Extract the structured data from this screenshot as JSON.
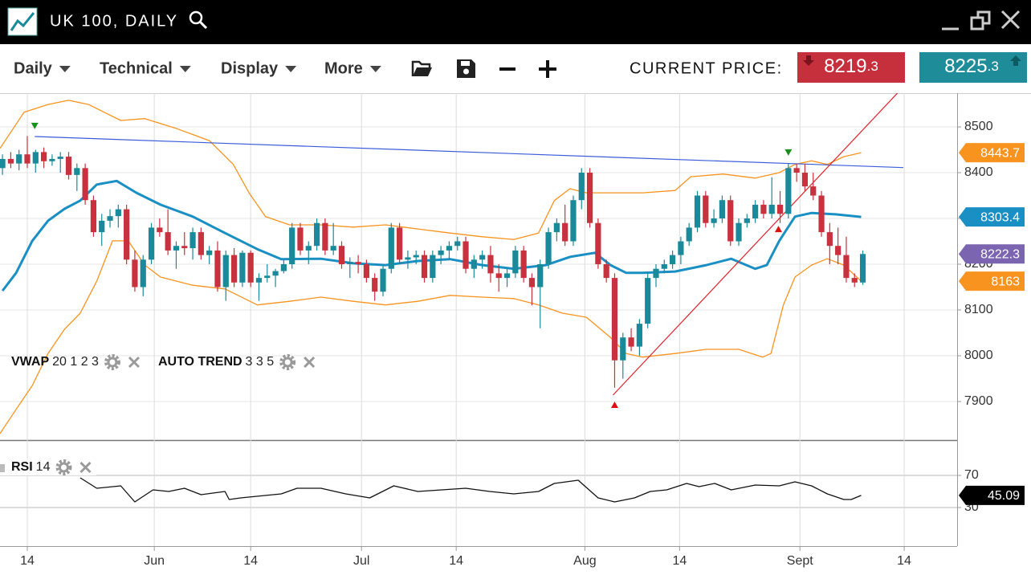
{
  "header": {
    "title": "UK 100, DAILY"
  },
  "toolbar": {
    "menus": [
      "Daily",
      "Technical",
      "Display",
      "More"
    ],
    "price_label": "CURRENT PRICE:",
    "bid": 8219.3,
    "ask": 8225.3
  },
  "chart_data": [
    {
      "type": "candlestick",
      "up_color": "#1a8a9a",
      "down_color": "#c8313e",
      "last_price_color": "#7b64b0",
      "ylim": [
        7815.8,
        8573.7
      ],
      "yticks": [
        7900,
        8000,
        8100,
        8200,
        8300,
        8400,
        8500
      ],
      "grid": true,
      "x": [
        0,
        1,
        2,
        3,
        4,
        5,
        6,
        7,
        8,
        9,
        10,
        11,
        12,
        13,
        14,
        15,
        16,
        17,
        18,
        19,
        20,
        21,
        22,
        23,
        24,
        25,
        26,
        27,
        28,
        29,
        30,
        31,
        32,
        33,
        34,
        35,
        36,
        37,
        38,
        39,
        40,
        41,
        42,
        43,
        44,
        45,
        46,
        47,
        48,
        49,
        50,
        51,
        52,
        53,
        54,
        55,
        56,
        57,
        58,
        59,
        60,
        61,
        62,
        63,
        64,
        65,
        66,
        67,
        68,
        69,
        70,
        71,
        72,
        73,
        74,
        75,
        76,
        77,
        78,
        79,
        80,
        81,
        82,
        83,
        84,
        85,
        86,
        87,
        88,
        89,
        90,
        91,
        92,
        93,
        94,
        95,
        96,
        97,
        98,
        99,
        100,
        101,
        102,
        103,
        104
      ],
      "ohlc": [
        [
          8410,
          8440,
          8395,
          8430
        ],
        [
          8430,
          8445,
          8410,
          8420
        ],
        [
          8420,
          8450,
          8405,
          8440
        ],
        [
          8440,
          8480,
          8410,
          8420
        ],
        [
          8420,
          8450,
          8400,
          8445
        ],
        [
          8445,
          8455,
          8410,
          8425
        ],
        [
          8425,
          8440,
          8415,
          8430
        ],
        [
          8430,
          8445,
          8400,
          8435
        ],
        [
          8435,
          8445,
          8385,
          8395
        ],
        [
          8395,
          8420,
          8360,
          8410
        ],
        [
          8410,
          8420,
          8330,
          8340
        ],
        [
          8340,
          8350,
          8260,
          8270
        ],
        [
          8270,
          8310,
          8240,
          8295
        ],
        [
          8295,
          8320,
          8280,
          8305
        ],
        [
          8305,
          8330,
          8280,
          8320
        ],
        [
          8320,
          8330,
          8200,
          8210
        ],
        [
          8210,
          8230,
          8140,
          8150
        ],
        [
          8150,
          8220,
          8130,
          8210
        ],
        [
          8210,
          8290,
          8200,
          8280
        ],
        [
          8280,
          8300,
          8260,
          8270
        ],
        [
          8270,
          8320,
          8220,
          8230
        ],
        [
          8230,
          8250,
          8190,
          8240
        ],
        [
          8240,
          8270,
          8220,
          8235
        ],
        [
          8235,
          8280,
          8210,
          8270
        ],
        [
          8270,
          8280,
          8210,
          8220
        ],
        [
          8220,
          8240,
          8200,
          8230
        ],
        [
          8230,
          8250,
          8140,
          8150
        ],
        [
          8150,
          8230,
          8120,
          8220
        ],
        [
          8220,
          8235,
          8150,
          8160
        ],
        [
          8160,
          8230,
          8150,
          8225
        ],
        [
          8225,
          8230,
          8150,
          8160
        ],
        [
          8160,
          8180,
          8120,
          8170
        ],
        [
          8170,
          8200,
          8160,
          8175
        ],
        [
          8175,
          8190,
          8150,
          8185
        ],
        [
          8185,
          8210,
          8180,
          8200
        ],
        [
          8200,
          8290,
          8190,
          8280
        ],
        [
          8280,
          8290,
          8220,
          8230
        ],
        [
          8230,
          8250,
          8200,
          8240
        ],
        [
          8240,
          8300,
          8230,
          8290
        ],
        [
          8290,
          8300,
          8220,
          8230
        ],
        [
          8230,
          8290,
          8220,
          8240
        ],
        [
          8240,
          8250,
          8190,
          8200
        ],
        [
          8200,
          8215,
          8170,
          8205
        ],
        [
          8205,
          8220,
          8180,
          8200
        ],
        [
          8200,
          8210,
          8160,
          8170
        ],
        [
          8170,
          8180,
          8120,
          8140
        ],
        [
          8140,
          8200,
          8130,
          8190
        ],
        [
          8190,
          8290,
          8180,
          8280
        ],
        [
          8280,
          8290,
          8200,
          8210
        ],
        [
          8210,
          8230,
          8190,
          8215
        ],
        [
          8215,
          8230,
          8200,
          8220
        ],
        [
          8220,
          8230,
          8160,
          8170
        ],
        [
          8170,
          8230,
          8160,
          8220
        ],
        [
          8220,
          8240,
          8200,
          8230
        ],
        [
          8230,
          8250,
          8210,
          8240
        ],
        [
          8240,
          8260,
          8230,
          8250
        ],
        [
          8250,
          8260,
          8180,
          8190
        ],
        [
          8190,
          8220,
          8170,
          8210
        ],
        [
          8210,
          8230,
          8190,
          8220
        ],
        [
          8220,
          8240,
          8160,
          8180
        ],
        [
          8180,
          8200,
          8140,
          8170
        ],
        [
          8170,
          8190,
          8150,
          8180
        ],
        [
          8180,
          8240,
          8170,
          8230
        ],
        [
          8230,
          8240,
          8160,
          8170
        ],
        [
          8170,
          8180,
          8110,
          8150
        ],
        [
          8150,
          8210,
          8060,
          8200
        ],
        [
          8200,
          8280,
          8190,
          8270
        ],
        [
          8270,
          8300,
          8250,
          8290
        ],
        [
          8290,
          8330,
          8240,
          8250
        ],
        [
          8250,
          8350,
          8240,
          8340
        ],
        [
          8340,
          8410,
          8320,
          8400
        ],
        [
          8400,
          8410,
          8280,
          8290
        ],
        [
          8290,
          8300,
          8190,
          8200
        ],
        [
          8200,
          8210,
          8160,
          8170
        ],
        [
          8170,
          8180,
          7930,
          7990
        ],
        [
          7990,
          8050,
          7950,
          8040
        ],
        [
          8040,
          8060,
          8010,
          8020
        ],
        [
          8020,
          8080,
          8000,
          8070
        ],
        [
          8070,
          8180,
          8060,
          8170
        ],
        [
          8170,
          8200,
          8150,
          8190
        ],
        [
          8190,
          8210,
          8180,
          8200
        ],
        [
          8200,
          8230,
          8190,
          8220
        ],
        [
          8220,
          8260,
          8200,
          8250
        ],
        [
          8250,
          8290,
          8240,
          8280
        ],
        [
          8280,
          8360,
          8270,
          8350
        ],
        [
          8350,
          8360,
          8280,
          8290
        ],
        [
          8290,
          8320,
          8280,
          8300
        ],
        [
          8300,
          8350,
          8290,
          8340
        ],
        [
          8340,
          8350,
          8240,
          8250
        ],
        [
          8250,
          8300,
          8240,
          8290
        ],
        [
          8290,
          8310,
          8280,
          8300
        ],
        [
          8300,
          8340,
          8290,
          8330
        ],
        [
          8330,
          8340,
          8300,
          8310
        ],
        [
          8310,
          8390,
          8300,
          8330
        ],
        [
          8330,
          8360,
          8290,
          8310
        ],
        [
          8310,
          8420,
          8300,
          8410
        ],
        [
          8410,
          8420,
          8380,
          8400
        ],
        [
          8400,
          8420,
          8360,
          8370
        ],
        [
          8370,
          8400,
          8340,
          8350
        ],
        [
          8350,
          8360,
          8260,
          8270
        ],
        [
          8270,
          8290,
          8200,
          8240
        ],
        [
          8240,
          8280,
          8200,
          8220
        ],
        [
          8220,
          8260,
          8160,
          8170
        ],
        [
          8170,
          8180,
          8150,
          8160
        ],
        [
          8160,
          8230,
          8155,
          8222.3
        ]
      ],
      "lines": [
        {
          "color": "#f7931e",
          "line_width": 1.3,
          "tag": true,
          "x": [
            -0.3,
            2.6,
            5.5,
            8.0,
            10.4,
            14.3,
            17.2,
            21.1,
            25.0,
            27.9,
            29.8,
            31.8,
            34.7,
            38.5,
            42.4,
            46.3,
            50.2,
            54.1,
            58.0,
            61.8,
            64.8,
            66.7,
            68.6,
            70.6,
            73.5,
            77.4,
            81.3,
            83.2,
            87.1,
            91.0,
            93.9,
            95.8,
            97.8,
            99.7,
            101.7,
            103.8
          ],
          "values": [
            8453,
            8532,
            8549,
            8558,
            8549,
            8514,
            8518,
            8496,
            8470,
            8418,
            8356,
            8304,
            8286,
            8286,
            8281,
            8286,
            8277,
            8268,
            8260,
            8254,
            8268,
            8339,
            8365,
            8356,
            8356,
            8356,
            8361,
            8391,
            8397,
            8388,
            8400,
            8418,
            8426,
            8418,
            8435,
            8443.7
          ]
        },
        {
          "color": "#f7931e",
          "line_width": 1.3,
          "tag": true,
          "x": [
            -0.3,
            1.65,
            3.6,
            5.5,
            7.5,
            9.4,
            11.4,
            13.3,
            15.2,
            17.2,
            19.1,
            23.0,
            26.9,
            30.8,
            34.7,
            38.5,
            42.4,
            46.3,
            50.2,
            54.1,
            58.0,
            61.8,
            64.8,
            67.7,
            70.6,
            73.5,
            75.4,
            77.4,
            81.3,
            85.1,
            89.0,
            91.9,
            92.9,
            94.4,
            95.8,
            97.8,
            99.7,
            101.7,
            103.8
          ],
          "values": [
            7830,
            7883,
            7935,
            8005,
            8058,
            8093,
            8163,
            8251,
            8251,
            8198,
            8172,
            8154,
            8146,
            8111,
            8119,
            8128,
            8119,
            8111,
            8119,
            8132,
            8128,
            8125,
            8111,
            8093,
            8084,
            8040,
            8005,
            7997,
            8005,
            8014,
            8014,
            7997,
            8005,
            8111,
            8172,
            8198,
            8212,
            8198,
            8163
          ]
        },
        {
          "color": "#1a8fc4",
          "line_width": 3,
          "tag": true,
          "x": [
            0,
            1.65,
            3.6,
            5.5,
            7.5,
            9.4,
            11.4,
            13.8,
            16.2,
            19.1,
            23.0,
            26.9,
            30.8,
            33.7,
            38.5,
            42.4,
            46.3,
            50.2,
            54.1,
            58.0,
            61.8,
            65.7,
            68.6,
            71.6,
            73.5,
            75.4,
            77.4,
            81.3,
            85.1,
            88.1,
            91.0,
            92.4,
            93.9,
            95.8,
            97.8,
            100.7,
            103.8
          ],
          "values": [
            8142,
            8181,
            8251,
            8295,
            8321,
            8339,
            8374,
            8382,
            8356,
            8330,
            8304,
            8268,
            8233,
            8211,
            8212,
            8202,
            8198,
            8207,
            8211,
            8198,
            8190,
            8198,
            8216,
            8225,
            8198,
            8181,
            8181,
            8184,
            8198,
            8212,
            8190,
            8198,
            8251,
            8304,
            8312,
            8309,
            8303.4
          ]
        }
      ],
      "trendlines": [
        {
          "color": "#3b5bdb",
          "x": [
            3.9,
            108.9
          ],
          "values": [
            8479,
            8411
          ]
        },
        {
          "color": "#e0202a",
          "x": [
            73.8,
            108.2
          ],
          "values": [
            7914,
            8574
          ]
        }
      ],
      "markers": [
        {
          "shape": "down",
          "color": "#17901d",
          "x": [
            3.9,
            95
          ],
          "values": [
            8502,
            8444
          ]
        },
        {
          "shape": "up",
          "color": "#e01010",
          "x": [
            93.8,
            74
          ],
          "values": [
            8277,
            7893
          ]
        }
      ],
      "indicators": [
        {
          "name": "VWAP",
          "params": "20 1 2 3"
        },
        {
          "name": "AUTO TREND",
          "params": "3 3 5"
        }
      ]
    },
    {
      "type": "line",
      "ylim": [
        -18,
        114
      ],
      "yticks": [
        30,
        70
      ],
      "grid": true,
      "tag_color": "#000000",
      "xlim": [
        -0.3,
        115.4
      ],
      "xticks": [
        {
          "value": 3.0,
          "label": "14"
        },
        {
          "value": 18.35,
          "label": "Jun"
        },
        {
          "value": 30.0,
          "label": "14"
        },
        {
          "value": 43.4,
          "label": "Jul"
        },
        {
          "value": 54.85,
          "label": "14"
        },
        {
          "value": 70.4,
          "label": "Aug"
        },
        {
          "value": 81.85,
          "label": "14"
        },
        {
          "value": 96.4,
          "label": "Sept"
        },
        {
          "value": 109.0,
          "label": "14"
        }
      ],
      "series": [
        {
          "color": "#111111",
          "line_width": 1.3,
          "x": [
            9.4,
            11.4,
            14.3,
            16.0,
            18.2,
            20.1,
            22.0,
            24.0,
            26.9,
            27.4,
            28.8,
            33.7,
            35.6,
            38.5,
            41.5,
            44.4,
            47.3,
            50.2,
            53.1,
            56.0,
            58.9,
            61.8,
            64.8,
            66.7,
            69.6,
            72.0,
            74.0,
            76.4,
            78.3,
            80.3,
            82.7,
            84.2,
            86.1,
            88.1,
            91.0,
            93.9,
            95.8,
            97.8,
            99.7,
            101.7,
            102.6,
            103.8
          ],
          "values": [
            67,
            54,
            57,
            37,
            52,
            50,
            54,
            46,
            50,
            40,
            42,
            47,
            54,
            54,
            47,
            42,
            57,
            50,
            52,
            54,
            50,
            47,
            50,
            60,
            64,
            42,
            37,
            42,
            50,
            52,
            60,
            56,
            60,
            52,
            58,
            57,
            62,
            57,
            47,
            40,
            40,
            45.09
          ]
        }
      ],
      "indicators": [
        {
          "name": "RSI",
          "params": "14"
        }
      ]
    }
  ]
}
